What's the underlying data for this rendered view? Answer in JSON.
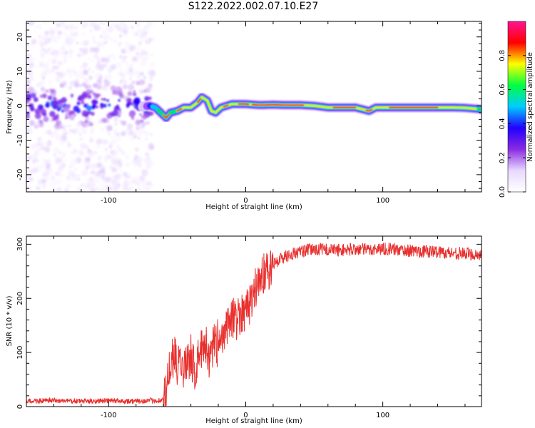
{
  "title": "S122.2022.002.07.10.E27",
  "colors": {
    "snr_line": "#e8302e",
    "axes": "#000000"
  },
  "chart_data": [
    {
      "type": "heatmap",
      "name": "spectrogram",
      "xlabel": "Height of straight line (km)",
      "ylabel": "Frequency (Hz)",
      "xlim": [
        -160,
        172
      ],
      "ylim": [
        -25,
        24.5
      ],
      "xticks": [
        -100,
        0,
        100
      ],
      "yticks": [
        -20,
        -10,
        0,
        10,
        20
      ],
      "colorbar": {
        "label": "Normalized spectral amplitude",
        "range": [
          0,
          1
        ],
        "ticks": [
          0.0,
          0.2,
          0.4,
          0.6,
          0.8
        ],
        "colormap": [
          "#ffffff",
          "#e8d8ff",
          "#8a2be2",
          "#2200ff",
          "#00ccff",
          "#00ff40",
          "#ffff00",
          "#ff0000",
          "#ff1493"
        ]
      },
      "noise_region_x": [
        -160,
        -68
      ],
      "ridge": {
        "x": [
          -160,
          -150,
          -140,
          -130,
          -120,
          -110,
          -100,
          -90,
          -80,
          -70,
          -66,
          -62,
          -58,
          -55,
          -50,
          -45,
          -40,
          -35,
          -32,
          -28,
          -25,
          -22,
          -18,
          -14,
          -10,
          -5,
          0,
          10,
          20,
          30,
          40,
          50,
          60,
          70,
          80,
          85,
          90,
          95,
          100,
          110,
          120,
          130,
          140,
          150,
          160,
          172
        ],
        "y": [
          0.5,
          0,
          -1,
          0.5,
          -0.5,
          1,
          0,
          0.5,
          -0.5,
          0,
          -0.5,
          -2,
          -3.5,
          -2,
          -1.5,
          -0.5,
          -0.5,
          1,
          2.5,
          1.5,
          -1.5,
          -2,
          -0.5,
          0,
          0.5,
          0.5,
          0.5,
          0.2,
          0.3,
          0.2,
          0.2,
          0,
          -0.5,
          -0.5,
          -0.5,
          -1,
          -1.5,
          -0.5,
          -0.5,
          -0.5,
          -0.5,
          -0.5,
          -0.5,
          -0.5,
          -0.6,
          -1
        ]
      },
      "peak_region_x": [
        -5,
        140
      ]
    },
    {
      "type": "line",
      "name": "snr",
      "xlabel": "Height of straight line (km)",
      "ylabel": "SNR (10 * v/v)",
      "xlim": [
        -160,
        172
      ],
      "ylim": [
        0,
        315
      ],
      "xticks": [
        -100,
        0,
        100
      ],
      "yticks": [
        0,
        100,
        200,
        300
      ],
      "series": [
        {
          "x": [
            -160,
            -140,
            -120,
            -100,
            -80,
            -60,
            -58,
            -56,
            -54,
            -52,
            -50,
            -47,
            -45,
            -42,
            -40,
            -37,
            -35,
            -32,
            -30,
            -28,
            -26,
            -24,
            -22,
            -20,
            -18,
            -15,
            -12,
            -10,
            -8,
            -5,
            -2,
            0,
            3,
            6,
            10,
            15,
            20,
            25,
            30,
            35,
            40,
            45,
            50,
            60,
            70,
            80,
            90,
            100,
            110,
            120,
            130,
            140,
            150,
            160,
            172
          ],
          "values": [
            10,
            11,
            10,
            11,
            10,
            12,
            28,
            58,
            82,
            100,
            72,
            92,
            68,
            80,
            95,
            66,
            88,
            105,
            120,
            110,
            78,
            115,
            125,
            100,
            120,
            135,
            150,
            170,
            158,
            168,
            178,
            180,
            190,
            212,
            238,
            250,
            262,
            273,
            278,
            283,
            286,
            289,
            291,
            290,
            289,
            291,
            290,
            292,
            290,
            288,
            287,
            286,
            284,
            283,
            280
          ]
        }
      ]
    }
  ]
}
